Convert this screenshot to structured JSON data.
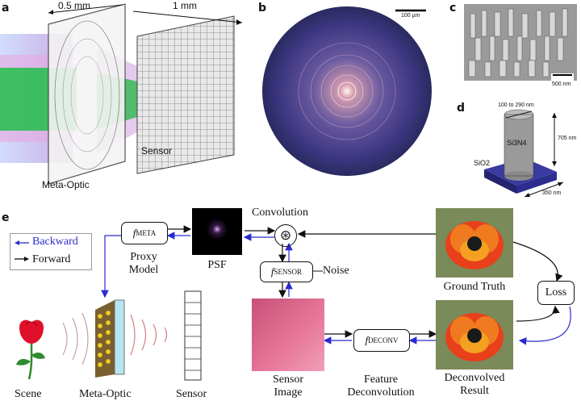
{
  "panel_a": {
    "letter": "a",
    "dim_left": "0.5 mm",
    "dim_right": "1 mm",
    "label_metaoptic": "Meta-Optic",
    "label_sensor": "Sensor"
  },
  "panel_b": {
    "letter": "b",
    "scalebar": "100 µm"
  },
  "panel_c": {
    "letter": "c",
    "scalebar": "500 nm"
  },
  "panel_d": {
    "letter": "d",
    "diameter": "100 to 290 nm",
    "height": "705 nm",
    "pitch": "350 nm",
    "pillar_material": "Si3N4",
    "substrate_material": "SiO2"
  },
  "panel_e": {
    "letter": "e",
    "legend_backward": "Backward",
    "legend_forward": "Forward",
    "f_meta": "f",
    "f_meta_sub": "META",
    "proxy_model_line1": "Proxy",
    "proxy_model_line2": "Model",
    "psf_label": "PSF",
    "convolution_label": "Convolution",
    "conv_symbol": "⊛",
    "f_sensor": "f",
    "f_sensor_sub": "SENSOR",
    "noise_label": "Noise",
    "ground_truth_label": "Ground Truth",
    "loss_label": "Loss",
    "sensor_image_line1": "Sensor",
    "sensor_image_line2": "Image",
    "f_deconv": "f",
    "f_deconv_sub": "DECONV",
    "feature_deconv_line1": "Feature",
    "feature_deconv_line2": "Deconvolution",
    "deconvolved_line1": "Deconvolved",
    "deconvolved_line2": "Result",
    "scene_label": "Scene",
    "metaoptic_label": "Meta-Optic",
    "sensor_label": "Sensor"
  },
  "colors": {
    "backward_arrow": "#2a2ad0",
    "forward_arrow": "#111111",
    "substrate": "#2d2d8f",
    "sensor_image": "#e06a90"
  }
}
